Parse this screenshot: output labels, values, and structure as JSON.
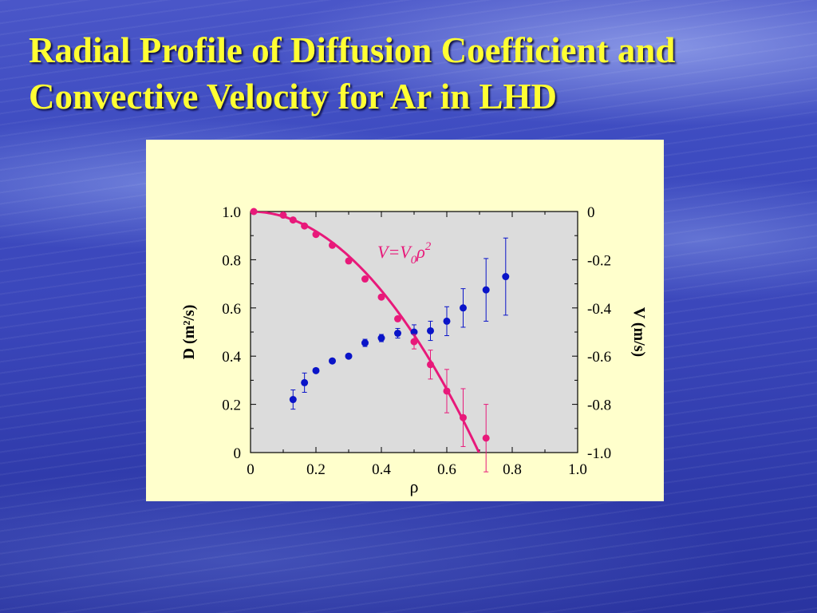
{
  "slide": {
    "title_line1": "Radial Profile of Diffusion Coefficient and",
    "title_line2": "Convective Velocity for Ar in LHD",
    "title_color": "#ffff33"
  },
  "chart_data": {
    "type": "scatter",
    "xlabel": "ρ",
    "ylabel_left": "D (m²/s)",
    "ylabel_right": "V (m/s)",
    "xlim": [
      0,
      1.0
    ],
    "ylim_left": [
      0,
      1.0
    ],
    "ylim_right": [
      -1.0,
      0
    ],
    "x_ticks": [
      "0",
      "0.2",
      "0.4",
      "0.6",
      "0.8",
      "1.0"
    ],
    "y_ticks_left": [
      "0",
      "0.2",
      "0.4",
      "0.6",
      "0.8",
      "1.0"
    ],
    "y_ticks_right": [
      "-1.0",
      "-0.8",
      "-0.6",
      "-0.4",
      "-0.2",
      "0"
    ],
    "plot_background": "#dcdcdc",
    "annotation": {
      "prefix": "V=V",
      "sub": "0",
      "base": "ρ",
      "sup": "2",
      "color": "#e8197a"
    },
    "series": [
      {
        "axis": "left",
        "color": "#0a14c8",
        "points": [
          {
            "x": 0.13,
            "y": 0.22,
            "err": 0.04
          },
          {
            "x": 0.165,
            "y": 0.29,
            "err": 0.04
          },
          {
            "x": 0.2,
            "y": 0.34,
            "err": 0.0
          },
          {
            "x": 0.25,
            "y": 0.38,
            "err": 0.0
          },
          {
            "x": 0.3,
            "y": 0.4,
            "err": 0.0
          },
          {
            "x": 0.35,
            "y": 0.455,
            "err": 0.015
          },
          {
            "x": 0.4,
            "y": 0.475,
            "err": 0.015
          },
          {
            "x": 0.45,
            "y": 0.495,
            "err": 0.02
          },
          {
            "x": 0.5,
            "y": 0.5,
            "err": 0.03
          },
          {
            "x": 0.55,
            "y": 0.505,
            "err": 0.04
          },
          {
            "x": 0.6,
            "y": 0.545,
            "err": 0.06
          },
          {
            "x": 0.65,
            "y": 0.6,
            "err": 0.08
          },
          {
            "x": 0.72,
            "y": 0.675,
            "err": 0.13
          },
          {
            "x": 0.78,
            "y": 0.73,
            "err": 0.16
          }
        ]
      },
      {
        "axis": "right",
        "color": "#e8197a",
        "points": [
          {
            "x": 0.01,
            "y": 0.0,
            "err": 0.0
          },
          {
            "x": 0.1,
            "y": -0.015,
            "err": 0.0
          },
          {
            "x": 0.13,
            "y": -0.035,
            "err": 0.0
          },
          {
            "x": 0.165,
            "y": -0.06,
            "err": 0.0
          },
          {
            "x": 0.2,
            "y": -0.095,
            "err": 0.0
          },
          {
            "x": 0.25,
            "y": -0.14,
            "err": 0.0
          },
          {
            "x": 0.3,
            "y": -0.205,
            "err": 0.0
          },
          {
            "x": 0.35,
            "y": -0.28,
            "err": 0.0
          },
          {
            "x": 0.4,
            "y": -0.355,
            "err": 0.0
          },
          {
            "x": 0.45,
            "y": -0.445,
            "err": 0.0
          },
          {
            "x": 0.5,
            "y": -0.54,
            "err": 0.03
          },
          {
            "x": 0.55,
            "y": -0.635,
            "err": 0.06
          },
          {
            "x": 0.6,
            "y": -0.745,
            "err": 0.09
          },
          {
            "x": 0.65,
            "y": -0.855,
            "err": 0.12
          },
          {
            "x": 0.72,
            "y": -0.94,
            "err": 0.14
          }
        ]
      }
    ],
    "fit_curve": {
      "axis": "right",
      "formula": "V = V0 * rho^2",
      "V0": -2.05,
      "color": "#e8197a"
    }
  }
}
